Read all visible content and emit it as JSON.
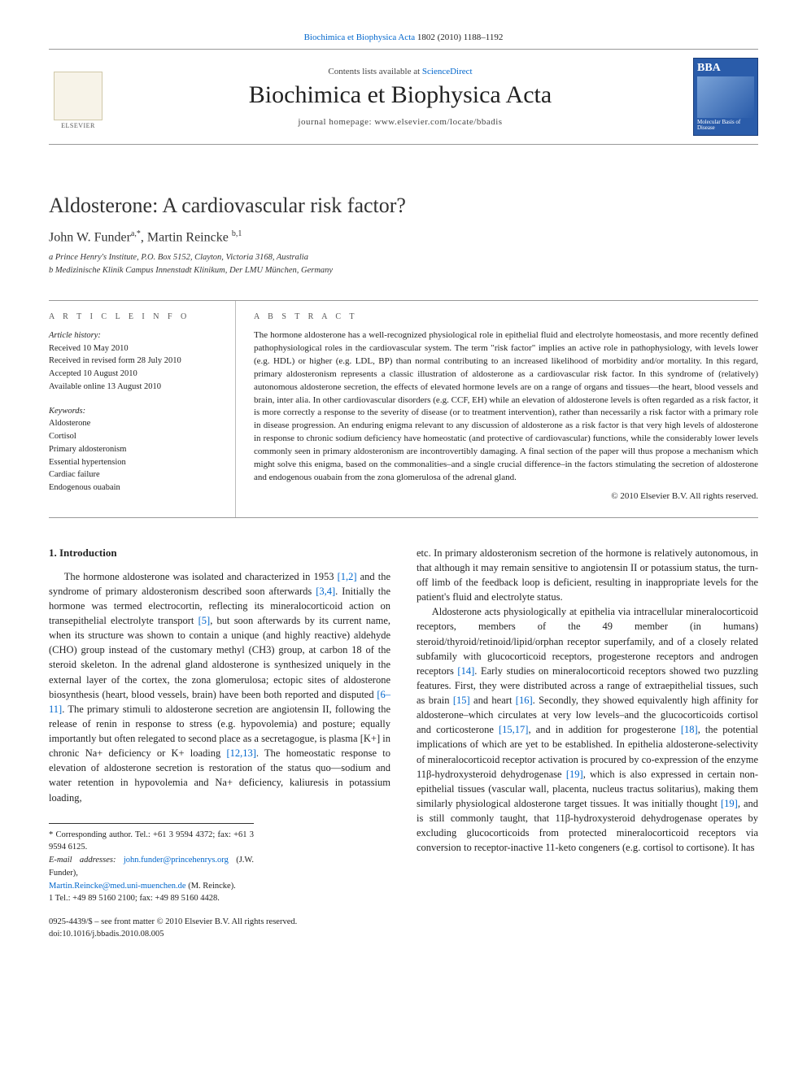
{
  "top_link": {
    "pre": "",
    "journal": "Biochimica et Biophysica Acta",
    "cite": "1802 (2010) 1188–1192"
  },
  "header": {
    "contents_pre": "Contents lists available at ",
    "contents_link": "ScienceDirect",
    "journal": "Biochimica et Biophysica Acta",
    "homepage": "journal homepage: www.elsevier.com/locate/bbadis",
    "elsevier_label": "ELSEVIER",
    "bba_top": "BBA",
    "bba_bottom": "Molecular Basis of Disease"
  },
  "article": {
    "title": "Aldosterone: A cardiovascular risk factor?",
    "authors_html": "John W. Funder",
    "author1_sup": "a,*",
    "author2": ", Martin Reincke ",
    "author2_sup": "b,1",
    "affil_a": "a Prince Henry's Institute, P.O. Box 5152, Clayton, Victoria 3168, Australia",
    "affil_b": "b Medizinische Klinik Campus Innenstadt Klinikum, Der LMU München, Germany"
  },
  "meta": {
    "ai_header": "A R T I C L E   I N F O",
    "history_label": "Article history:",
    "h1": "Received 10 May 2010",
    "h2": "Received in revised form 28 July 2010",
    "h3": "Accepted 10 August 2010",
    "h4": "Available online 13 August 2010",
    "kw_label": "Keywords:",
    "kw": [
      "Aldosterone",
      "Cortisol",
      "Primary aldosteronism",
      "Essential hypertension",
      "Cardiac failure",
      "Endogenous ouabain"
    ]
  },
  "abstract": {
    "header": "A B S T R A C T",
    "text": "The hormone aldosterone has a well-recognized physiological role in epithelial fluid and electrolyte homeostasis, and more recently defined pathophysiological roles in the cardiovascular system. The term \"risk factor\" implies an active role in pathophysiology, with levels lower (e.g. HDL) or higher (e.g. LDL, BP) than normal contributing to an increased likelihood of morbidity and/or mortality. In this regard, primary aldosteronism represents a classic illustration of aldosterone as a cardiovascular risk factor. In this syndrome of (relatively) autonomous aldosterone secretion, the effects of elevated hormone levels are on a range of organs and tissues—the heart, blood vessels and brain, inter alia. In other cardiovascular disorders (e.g. CCF, EH) while an elevation of aldosterone levels is often regarded as a risk factor, it is more correctly a response to the severity of disease (or to treatment intervention), rather than necessarily a risk factor with a primary role in disease progression. An enduring enigma relevant to any discussion of aldosterone as a risk factor is that very high levels of aldosterone in response to chronic sodium deficiency have homeostatic (and protective of cardiovascular) functions, while the considerably lower levels commonly seen in primary aldosteronism are incontrovertibly damaging. A final section of the paper will thus propose a mechanism which might solve this enigma, based on the commonalities–and a single crucial difference–in the factors stimulating the secretion of aldosterone and endogenous ouabain from the zona glomerulosa of the adrenal gland.",
    "copyright": "© 2010 Elsevier B.V. All rights reserved."
  },
  "body": {
    "section1_head": "1. Introduction",
    "col1_p1a": "The hormone aldosterone was isolated and characterized in 1953 ",
    "ref12": "[1,2]",
    "col1_p1b": " and the syndrome of primary aldosteronism described soon afterwards ",
    "ref34": "[3,4]",
    "col1_p1c": ". Initially the hormone was termed electrocortin, reflecting its mineralocorticoid action on transepithelial electrolyte transport ",
    "ref5": "[5]",
    "col1_p1d": ", but soon afterwards by its current name, when its structure was shown to contain a unique (and highly reactive) aldehyde (CHO) group instead of the customary methyl (CH3) group, at carbon 18 of the steroid skeleton. In the adrenal gland aldosterone is synthesized uniquely in the external layer of the cortex, the zona glomerulosa; ectopic sites of aldosterone biosynthesis (heart, blood vessels, brain) have been both reported and disputed ",
    "ref611": "[6–11]",
    "col1_p1e": ". The primary stimuli to aldosterone secretion are angiotensin II, following the release of renin in response to stress (e.g. hypovolemia) and posture; equally importantly but often relegated to second place as a secretagogue, is plasma [K+] in chronic Na+ deficiency or K+ loading ",
    "ref1213": "[12,13]",
    "col1_p1f": ". The homeostatic response to elevation of aldosterone secretion is restoration of the status quo—sodium and water retention in hypovolemia and Na+ deficiency, kaliuresis in potassium loading,",
    "col2_p1": "etc. In primary aldosteronism secretion of the hormone is relatively autonomous, in that although it may remain sensitive to angiotensin II or potassium status, the turn-off limb of the feedback loop is deficient, resulting in inappropriate levels for the patient's fluid and electrolyte status.",
    "col2_p2a": "Aldosterone acts physiologically at epithelia via intracellular mineralocorticoid receptors, members of the 49 member (in humans) steroid/thyroid/retinoid/lipid/orphan receptor superfamily, and of a closely related subfamily with glucocorticoid receptors, progesterone receptors and androgen receptors ",
    "ref14": "[14]",
    "col2_p2b": ". Early studies on mineralocorticoid receptors showed two puzzling features. First, they were distributed across a range of extraepithelial tissues, such as brain ",
    "ref15": "[15]",
    "col2_p2c": " and heart ",
    "ref16": "[16]",
    "col2_p2d": ". Secondly, they showed equivalently high affinity for aldosterone–which circulates at very low levels–and the glucocorticoids cortisol and corticosterone ",
    "ref1517": "[15,17]",
    "col2_p2e": ", and in addition for progesterone ",
    "ref18": "[18]",
    "col2_p2f": ", the potential implications of which are yet to be established. In epithelia aldosterone-selectivity of mineralocorticoid receptor activation is procured by co-expression of the enzyme 11β-hydroxysteroid dehydrogenase ",
    "ref19": "[19]",
    "col2_p2g": ", which is also expressed in certain non-epithelial tissues (vascular wall, placenta, nucleus tractus solitarius), making them similarly physiological aldosterone target tissues. It was initially thought ",
    "ref19b": "[19]",
    "col2_p2h": ", and is still commonly taught, that 11β-hydroxysteroid dehydrogenase operates by excluding glucocorticoids from protected mineralocorticoid receptors via conversion to receptor-inactive 11-keto congeners (e.g. cortisol to cortisone). It has"
  },
  "footnotes": {
    "corr": "* Corresponding author. Tel.: +61 3 9594 4372; fax: +61 3 9594 6125.",
    "email_label": "E-mail addresses: ",
    "email1": "john.funder@princehenrys.org",
    "email1_who": " (J.W. Funder),",
    "email2": "Martin.Reincke@med.uni-muenchen.de",
    "email2_who": " (M. Reincke).",
    "fn1": "1  Tel.: +49 89 5160 2100; fax: +49 89 5160 4428.",
    "front_matter": "0925-4439/$ – see front matter © 2010 Elsevier B.V. All rights reserved.",
    "doi": "doi:10.1016/j.bbadis.2010.08.005"
  },
  "colors": {
    "link": "#0066cc",
    "rule": "#999999",
    "elsevier_bg": "#f7f3e8",
    "bba_bg": "#2a5caa"
  }
}
